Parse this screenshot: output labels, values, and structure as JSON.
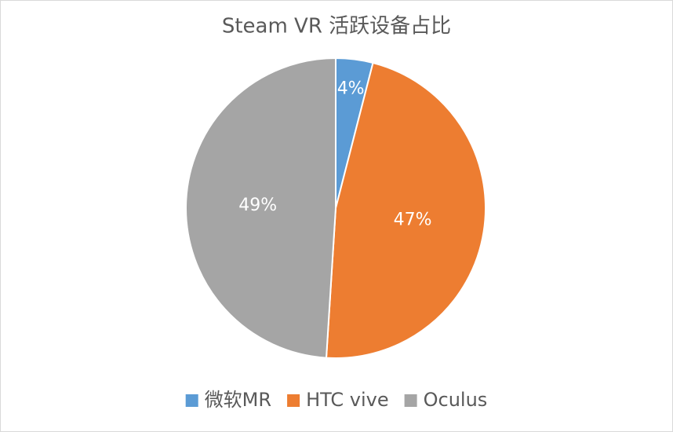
{
  "chart_data": {
    "type": "pie",
    "title": "Steam VR 活跃设备占比",
    "categories": [
      "微软MR",
      "HTC vive",
      "Oculus"
    ],
    "values": [
      4,
      47,
      49
    ],
    "value_labels": [
      "4%",
      "47%",
      "49%"
    ],
    "colors": [
      "#5b9bd5",
      "#ed7d31",
      "#a5a5a5"
    ],
    "legend": "bottom"
  }
}
